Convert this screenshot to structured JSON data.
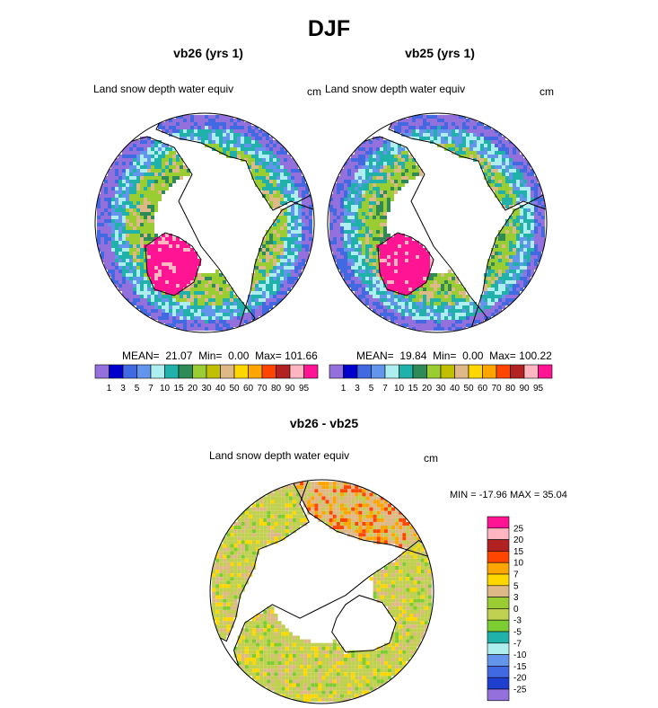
{
  "figure": {
    "title": "DJF"
  },
  "chart_data": [
    {
      "type": "heatmap",
      "projection": "north-polar-stereographic",
      "title": "vb26 (yrs 1)",
      "variable": "Land snow depth water equiv",
      "units": "cm",
      "stats": {
        "mean_label": "MEAN=",
        "mean": "21.07",
        "min_label": "Min=",
        "min": "0.00",
        "max_label": "Max=",
        "max": "101.66"
      },
      "levels": [
        1,
        3,
        5,
        7,
        10,
        15,
        20,
        30,
        40,
        50,
        60,
        70,
        80,
        90,
        95
      ],
      "colors": [
        "#9370db",
        "#0000cd",
        "#4169e1",
        "#6495ed",
        "#afeeee",
        "#20b2aa",
        "#2e8b57",
        "#9acd32",
        "#c0c000",
        "#deb887",
        "#ffd700",
        "#ffa500",
        "#ff4500",
        "#b22222",
        "#ffb6c1",
        "#ff1493"
      ]
    },
    {
      "type": "heatmap",
      "projection": "north-polar-stereographic",
      "title": "vb25 (yrs 1)",
      "variable": "Land snow depth water equiv",
      "units": "cm",
      "stats": {
        "mean_label": "MEAN=",
        "mean": "19.84",
        "min_label": "Min=",
        "min": "0.00",
        "max_label": "Max=",
        "max": "100.22"
      },
      "levels": [
        1,
        3,
        5,
        7,
        10,
        15,
        20,
        30,
        40,
        50,
        60,
        70,
        80,
        90,
        95
      ],
      "colors": [
        "#9370db",
        "#0000cd",
        "#4169e1",
        "#6495ed",
        "#afeeee",
        "#20b2aa",
        "#2e8b57",
        "#9acd32",
        "#c0c000",
        "#deb887",
        "#ffd700",
        "#ffa500",
        "#ff4500",
        "#b22222",
        "#ffb6c1",
        "#ff1493"
      ]
    },
    {
      "type": "heatmap",
      "projection": "north-polar-stereographic",
      "title": "vb26 - vb25",
      "variable": "Land snow depth water equiv",
      "units": "cm",
      "stats_text": "MIN = -17.96 MAX =  35.04",
      "levels": [
        "25",
        "20",
        "15",
        "10",
        "7",
        "5",
        "3",
        "0",
        "-3",
        "-5",
        "-7",
        "-10",
        "-15",
        "-20",
        "-25"
      ],
      "colors": [
        "#ff1493",
        "#ffb6c1",
        "#b22222",
        "#ff4500",
        "#ffa500",
        "#ffd700",
        "#deb887",
        "#9acd32",
        "#c0d050",
        "#7ccd32",
        "#20b2aa",
        "#afeeee",
        "#6495ed",
        "#4169e1",
        "#1e3fd0",
        "#9370db"
      ]
    }
  ]
}
